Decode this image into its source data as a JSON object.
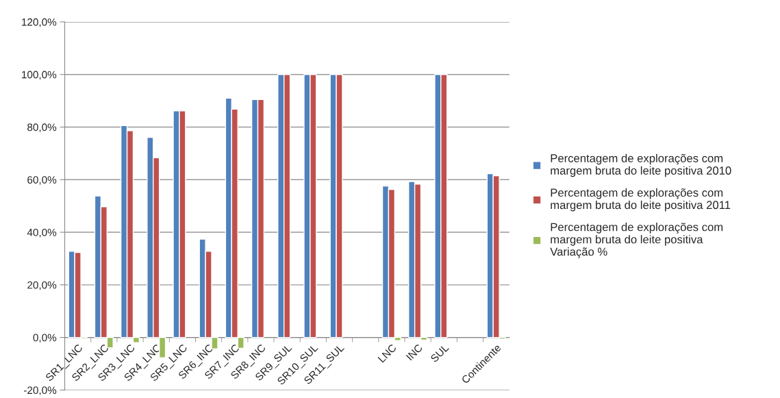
{
  "chart_data": {
    "type": "bar",
    "categories": [
      "SR1_LNC",
      "SR2_LNC",
      "SR3_LNC",
      "SR4_LNC",
      "SR5_LNC",
      "SR6_INC",
      "SR7_INC",
      "SR8_INC",
      "SR9_SUL",
      "SR10_SUL",
      "SR11_SUL",
      null,
      "LNC",
      "INC",
      "SUL",
      null,
      "Continente"
    ],
    "series": [
      {
        "name": "Percentagem de explorações com margem bruta do leite positiva 2010",
        "color": "#4f81bd",
        "values": [
          32.8,
          53.8,
          80.6,
          76.1,
          86.2,
          37.4,
          91.0,
          90.5,
          100,
          100,
          100,
          null,
          57.6,
          59.3,
          100,
          null,
          62.3
        ]
      },
      {
        "name": "Percentagem de explorações com margem bruta do leite positiva 2011",
        "color": "#c0504d",
        "values": [
          32.3,
          49.7,
          78.6,
          68.3,
          86.2,
          32.8,
          86.8,
          90.5,
          100,
          100,
          100,
          null,
          56.3,
          58.3,
          100,
          null,
          61.5
        ]
      },
      {
        "name": "Percentagem de explorações com margem bruta do leite positiva Variação %",
        "color": "#9bbb59",
        "values": [
          -0.5,
          -3.9,
          -2.0,
          -7.7,
          null,
          -4.3,
          -4.1,
          null,
          null,
          null,
          null,
          null,
          -1.2,
          -1.0,
          null,
          null,
          -0.6
        ]
      }
    ],
    "ylim": [
      -20,
      120
    ],
    "yticks": [
      {
        "value": -20,
        "label": "-20,0%"
      },
      {
        "value": 0,
        "label": "0,0%"
      },
      {
        "value": 20,
        "label": "20,0%"
      },
      {
        "value": 40,
        "label": "40,0%"
      },
      {
        "value": 60,
        "label": "60,0%"
      },
      {
        "value": 80,
        "label": "80,0%"
      },
      {
        "value": 100,
        "label": "100,0%"
      },
      {
        "value": 120,
        "label": "120,0%"
      }
    ],
    "grid": "y",
    "legend": "right"
  }
}
